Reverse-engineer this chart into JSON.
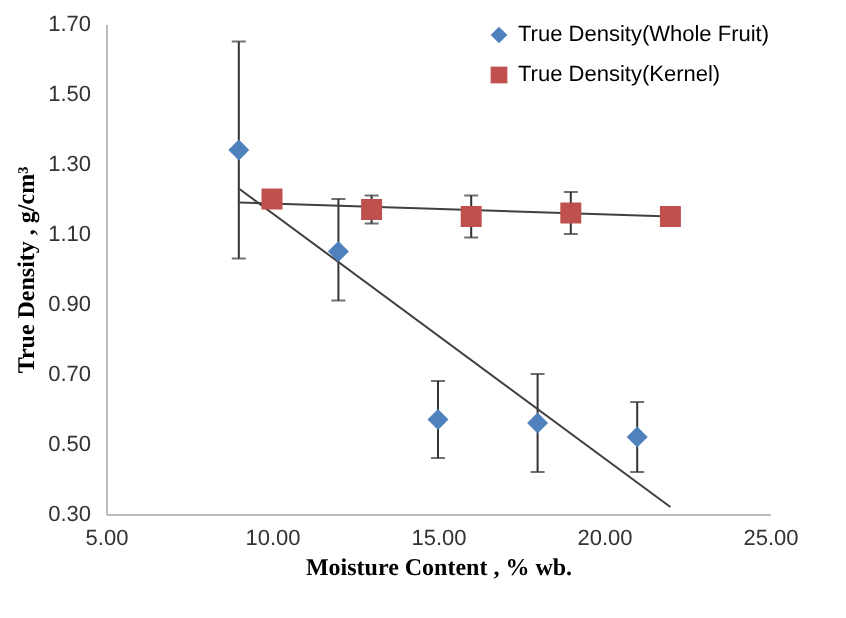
{
  "chart_data": {
    "type": "scatter",
    "xlabel": "Moisture Content , % wb.",
    "ylabel": "True Density , g/cm³",
    "xlim": [
      5,
      25
    ],
    "xticks": [
      {
        "value": 5,
        "label": "5.00"
      },
      {
        "value": 10,
        "label": "10.00"
      },
      {
        "value": 15,
        "label": "15.00"
      },
      {
        "value": 20,
        "label": "20.00"
      },
      {
        "value": 25,
        "label": "25.00"
      }
    ],
    "ylim": [
      0.3,
      1.7
    ],
    "yticks": [
      {
        "value": 0.3,
        "label": "0.30"
      },
      {
        "value": 0.5,
        "label": "0.50"
      },
      {
        "value": 0.7,
        "label": "0.70"
      },
      {
        "value": 0.9,
        "label": "0.90"
      },
      {
        "value": 1.1,
        "label": "1.10"
      },
      {
        "value": 1.3,
        "label": "1.30"
      },
      {
        "value": 1.5,
        "label": "1.50"
      },
      {
        "value": 1.7,
        "label": "1.70"
      }
    ],
    "grid": false,
    "legend": "top right",
    "series": [
      {
        "name": "True Density(Whole Fruit)",
        "color": "#4f81bd",
        "marker": "diamond",
        "x": [
          9.0,
          12.0,
          15.0,
          18.0,
          21.0
        ],
        "values": [
          1.34,
          1.05,
          0.57,
          0.56,
          0.52
        ],
        "errors": [
          [
            1.03,
            1.65
          ],
          [
            0.91,
            1.2
          ],
          [
            0.46,
            0.68
          ],
          [
            0.42,
            0.7
          ],
          [
            0.42,
            0.62
          ]
        ]
      },
      {
        "name": "True Density(Kernel)",
        "color": "#c0504d",
        "marker": "square",
        "x": [
          10.0,
          13.0,
          16.0,
          19.0,
          22.0
        ],
        "values": [
          1.2,
          1.17,
          1.15,
          1.16,
          1.15
        ],
        "errors": [
          null,
          [
            1.13,
            1.21
          ],
          [
            1.09,
            1.21
          ],
          [
            1.1,
            1.22
          ],
          null
        ]
      },
      {
        "type": "line",
        "color": "#404040",
        "marker": "none",
        "x": [
          9.0,
          22.0
        ],
        "values": [
          1.23,
          0.32
        ]
      },
      {
        "type": "line",
        "color": "#404040",
        "marker": "none",
        "x": [
          9.0,
          22.0
        ],
        "values": [
          1.19,
          1.15
        ]
      }
    ]
  }
}
